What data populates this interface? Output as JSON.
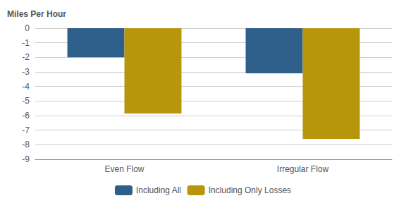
{
  "chart_data": {
    "type": "bar",
    "ylabel": "Miles Per Hour",
    "categories": [
      "Even Flow",
      "Irregular Flow"
    ],
    "series": [
      {
        "name": "Including All",
        "color": "#2E5F8A",
        "values": [
          -2.0,
          -3.1
        ]
      },
      {
        "name": "Including Only Losses",
        "color": "#B8960C",
        "values": [
          -5.85,
          -7.6
        ]
      }
    ],
    "ylim": [
      -9,
      0
    ],
    "yticks": [
      0,
      -1,
      -2,
      -3,
      -4,
      -5,
      -6,
      -7,
      -8,
      -9
    ],
    "grid": true,
    "legend": "bottom"
  }
}
